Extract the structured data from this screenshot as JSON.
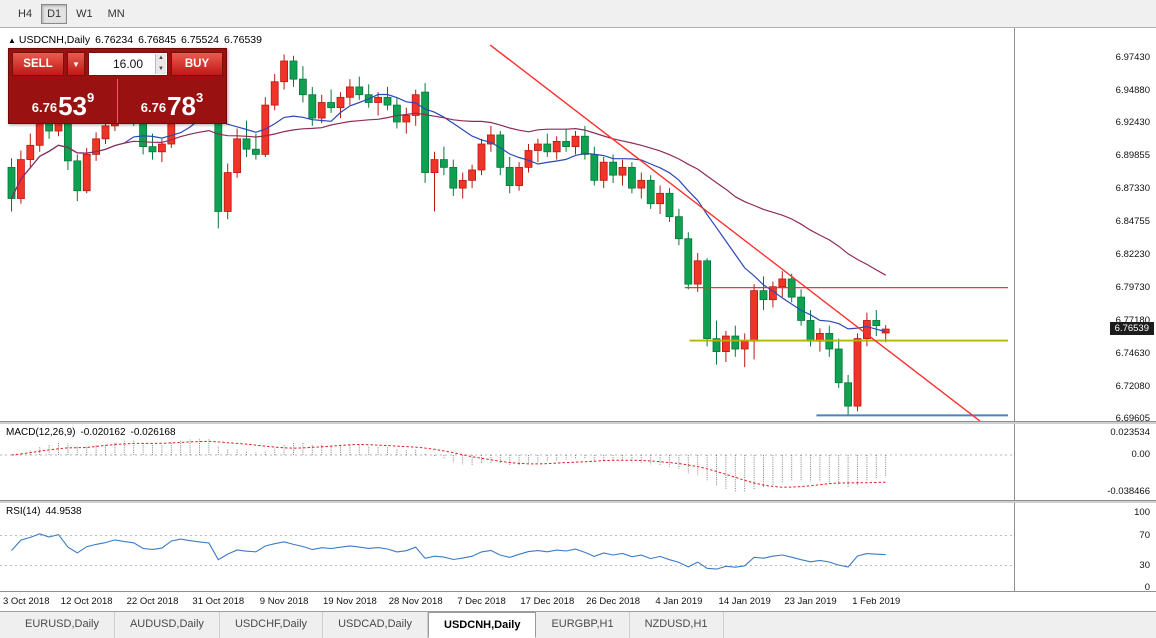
{
  "toolbar": {
    "timeframes": [
      {
        "label": "H4",
        "active": false
      },
      {
        "label": "D1",
        "active": true
      },
      {
        "label": "W1",
        "active": false
      },
      {
        "label": "MN",
        "active": false
      }
    ]
  },
  "icons": {
    "header_marker": "▲",
    "chevron_down": "▼",
    "spinner_up": "▲",
    "spinner_down": "▼"
  },
  "chart_header": {
    "symbol": "USDCNH,Daily",
    "open": "6.76234",
    "high": "6.76845",
    "low": "6.75524",
    "close": "6.76539"
  },
  "trade_panel": {
    "sell_label": "SELL",
    "buy_label": "BUY",
    "volume": "16.00",
    "sell_price": {
      "base": "6.76",
      "big": "53",
      "sup": "9"
    },
    "buy_price": {
      "base": "6.76",
      "big": "78",
      "sup": "3"
    }
  },
  "price_scale": {
    "labels": [
      "6.97430",
      "6.94880",
      "6.92430",
      "6.89855",
      "6.87330",
      "6.84755",
      "6.82230",
      "6.79730",
      "6.77180",
      "6.74630",
      "6.72080",
      "6.69605"
    ],
    "current": "6.76539"
  },
  "macd_panel": {
    "title": "MACD(12,26,9)",
    "main_value": "-0.020162",
    "signal_value": "-0.026168",
    "scale_labels": [
      "0.023534",
      "0.00",
      "-0.038466"
    ]
  },
  "rsi_panel": {
    "title": "RSI(14)",
    "value": "44.9538",
    "scale_labels": [
      "100",
      "70",
      "30",
      "0"
    ]
  },
  "time_axis": {
    "dates": [
      "3 Oct 2018",
      "12 Oct 2018",
      "22 Oct 2018",
      "31 Oct 2018",
      "9 Nov 2018",
      "19 Nov 2018",
      "28 Nov 2018",
      "7 Dec 2018",
      "17 Dec 2018",
      "26 Dec 2018",
      "4 Jan 2019",
      "14 Jan 2019",
      "23 Jan 2019",
      "1 Feb 2019"
    ]
  },
  "symbol_tabs": [
    {
      "label": "EURUSD,Daily",
      "active": false
    },
    {
      "label": "AUDUSD,Daily",
      "active": false
    },
    {
      "label": "USDCHF,Daily",
      "active": false
    },
    {
      "label": "USDCAD,Daily",
      "active": false
    },
    {
      "label": "USDCNH,Daily",
      "active": true
    },
    {
      "label": "EURGBP,H1",
      "active": false
    },
    {
      "label": "NZDUSD,H1",
      "active": false
    }
  ],
  "colors": {
    "up": "#f0342a",
    "up_border": "#b81a10",
    "down": "#0fa052",
    "down_border": "#06793a",
    "ma_fast": "#2b49b5",
    "ma_slow": "#8f2b57",
    "trendline": "#ff2e2e",
    "hline_red": "#ff2e2e",
    "hline_olive": "#b2b400",
    "hline_blue": "#4f81bd",
    "macd_hist": "#808080",
    "macd_signal": "#e02020",
    "rsi_line": "#3b7cc4"
  },
  "chart_data": {
    "type": "candlestick",
    "symbol": "USDCNH",
    "timeframe": "Daily",
    "ohlc_current": {
      "open": 6.76234,
      "high": 6.76845,
      "low": 6.75524,
      "close": 6.76539
    },
    "y_axis": {
      "top_price": 6.9743,
      "bottom_price": 6.69605
    },
    "candles": [
      [
        6.89,
        6.897,
        6.856,
        6.866
      ],
      [
        6.866,
        6.903,
        6.862,
        6.896
      ],
      [
        6.896,
        6.916,
        6.89,
        6.907
      ],
      [
        6.907,
        6.93,
        6.902,
        6.925
      ],
      [
        6.925,
        6.934,
        6.912,
        6.918
      ],
      [
        6.918,
        6.936,
        6.914,
        6.93
      ],
      [
        6.93,
        6.932,
        6.888,
        6.895
      ],
      [
        6.895,
        6.9,
        6.864,
        6.872
      ],
      [
        6.872,
        6.905,
        6.87,
        6.9
      ],
      [
        6.9,
        6.917,
        6.895,
        6.912
      ],
      [
        6.912,
        6.928,
        6.908,
        6.922
      ],
      [
        6.922,
        6.944,
        6.918,
        6.938
      ],
      [
        6.938,
        6.946,
        6.928,
        6.932
      ],
      [
        6.932,
        6.94,
        6.922,
        6.928
      ],
      [
        6.928,
        6.934,
        6.9,
        6.906
      ],
      [
        6.906,
        6.916,
        6.896,
        6.902
      ],
      [
        6.902,
        6.912,
        6.894,
        6.908
      ],
      [
        6.908,
        6.95,
        6.905,
        6.945
      ],
      [
        6.945,
        6.962,
        6.938,
        6.958
      ],
      [
        6.958,
        6.97,
        6.948,
        6.952
      ],
      [
        6.952,
        6.964,
        6.944,
        6.948
      ],
      [
        6.948,
        6.956,
        6.938,
        6.944
      ],
      [
        6.946,
        6.956,
        6.843,
        6.856
      ],
      [
        6.856,
        6.893,
        6.85,
        6.886
      ],
      [
        6.886,
        6.92,
        6.882,
        6.912
      ],
      [
        6.912,
        6.926,
        6.898,
        6.904
      ],
      [
        6.904,
        6.916,
        6.896,
        6.9
      ],
      [
        6.9,
        6.944,
        6.898,
        6.938
      ],
      [
        6.938,
        6.962,
        6.934,
        6.956
      ],
      [
        6.956,
        6.977,
        6.95,
        6.972
      ],
      [
        6.972,
        6.976,
        6.952,
        6.958
      ],
      [
        6.958,
        6.968,
        6.94,
        6.946
      ],
      [
        6.946,
        6.952,
        6.922,
        6.928
      ],
      [
        6.928,
        6.946,
        6.924,
        6.94
      ],
      [
        6.94,
        6.95,
        6.932,
        6.936
      ],
      [
        6.936,
        6.948,
        6.928,
        6.944
      ],
      [
        6.944,
        6.958,
        6.938,
        6.952
      ],
      [
        6.952,
        6.96,
        6.942,
        6.946
      ],
      [
        6.946,
        6.954,
        6.936,
        6.94
      ],
      [
        6.94,
        6.948,
        6.93,
        6.944
      ],
      [
        6.944,
        6.952,
        6.934,
        6.938
      ],
      [
        6.938,
        6.944,
        6.92,
        6.925
      ],
      [
        6.925,
        6.936,
        6.916,
        6.93
      ],
      [
        6.93,
        6.95,
        6.922,
        6.946
      ],
      [
        6.948,
        6.955,
        6.878,
        6.886
      ],
      [
        6.886,
        6.902,
        6.856,
        6.896
      ],
      [
        6.896,
        6.906,
        6.884,
        6.89
      ],
      [
        6.89,
        6.896,
        6.868,
        6.874
      ],
      [
        6.874,
        6.886,
        6.866,
        6.88
      ],
      [
        6.88,
        6.892,
        6.874,
        6.888
      ],
      [
        6.888,
        6.912,
        6.884,
        6.908
      ],
      [
        6.908,
        6.922,
        6.902,
        6.915
      ],
      [
        6.915,
        6.918,
        6.884,
        6.89
      ],
      [
        6.89,
        6.898,
        6.87,
        6.876
      ],
      [
        6.876,
        6.894,
        6.872,
        6.89
      ],
      [
        6.89,
        6.908,
        6.886,
        6.903
      ],
      [
        6.903,
        6.912,
        6.894,
        6.908
      ],
      [
        6.908,
        6.916,
        6.898,
        6.902
      ],
      [
        6.902,
        6.914,
        6.896,
        6.91
      ],
      [
        6.91,
        6.92,
        6.902,
        6.906
      ],
      [
        6.906,
        6.918,
        6.9,
        6.914
      ],
      [
        6.914,
        6.922,
        6.896,
        6.9
      ],
      [
        6.9,
        6.906,
        6.876,
        6.88
      ],
      [
        6.88,
        6.898,
        6.874,
        6.894
      ],
      [
        6.894,
        6.9,
        6.878,
        6.884
      ],
      [
        6.884,
        6.896,
        6.876,
        6.89
      ],
      [
        6.89,
        6.894,
        6.87,
        6.874
      ],
      [
        6.874,
        6.886,
        6.866,
        6.88
      ],
      [
        6.88,
        6.884,
        6.858,
        6.862
      ],
      [
        6.862,
        6.876,
        6.854,
        6.87
      ],
      [
        6.87,
        6.874,
        6.848,
        6.852
      ],
      [
        6.852,
        6.858,
        6.83,
        6.835
      ],
      [
        6.835,
        6.84,
        6.796,
        6.8
      ],
      [
        6.8,
        6.824,
        6.794,
        6.818
      ],
      [
        6.818,
        6.82,
        6.752,
        6.758
      ],
      [
        6.758,
        6.772,
        6.738,
        6.748
      ],
      [
        6.748,
        6.764,
        6.74,
        6.76
      ],
      [
        6.76,
        6.768,
        6.744,
        6.75
      ],
      [
        6.75,
        6.762,
        6.736,
        6.756
      ],
      [
        6.756,
        6.8,
        6.742,
        6.795
      ],
      [
        6.795,
        6.806,
        6.78,
        6.788
      ],
      [
        6.788,
        6.802,
        6.782,
        6.798
      ],
      [
        6.798,
        6.81,
        6.79,
        6.804
      ],
      [
        6.804,
        6.808,
        6.786,
        6.79
      ],
      [
        6.79,
        6.796,
        6.768,
        6.772
      ],
      [
        6.772,
        6.78,
        6.752,
        6.756
      ],
      [
        6.756,
        6.766,
        6.748,
        6.762
      ],
      [
        6.762,
        6.768,
        6.744,
        6.75
      ],
      [
        6.75,
        6.758,
        6.72,
        6.724
      ],
      [
        6.724,
        6.73,
        6.699,
        6.706
      ],
      [
        6.706,
        6.762,
        6.702,
        6.758
      ],
      [
        6.758,
        6.778,
        6.752,
        6.772
      ],
      [
        6.772,
        6.78,
        6.76,
        6.768
      ],
      [
        6.76234,
        6.76845,
        6.75524,
        6.76539
      ]
    ],
    "date_tick_indices": [
      1,
      8,
      15,
      22,
      29,
      36,
      43,
      50,
      57,
      64,
      71,
      78,
      85,
      92
    ],
    "moving_averages": [
      {
        "period": 13,
        "color_key": "ma_fast"
      },
      {
        "period": 34,
        "color_key": "ma_slow"
      }
    ],
    "levels": [
      {
        "price": 6.7973,
        "from_index": 72,
        "color_key": "hline_red",
        "width": 1.2
      },
      {
        "price": 6.7565,
        "from_index": 72.5,
        "color_key": "hline_olive",
        "width": 1.8
      },
      {
        "price": 6.6988,
        "from_index": 86,
        "color_key": "hline_blue",
        "width": 2
      }
    ],
    "trendline": {
      "from": {
        "index": 51.3,
        "price": 6.9843
      },
      "to": {
        "index": 103.4,
        "price": 6.6945
      },
      "color_key": "trendline"
    },
    "indicators": {
      "macd": {
        "fast": 12,
        "slow": 26,
        "signal": 9
      },
      "rsi": {
        "period": 14,
        "levels": [
          70,
          30
        ]
      }
    }
  }
}
